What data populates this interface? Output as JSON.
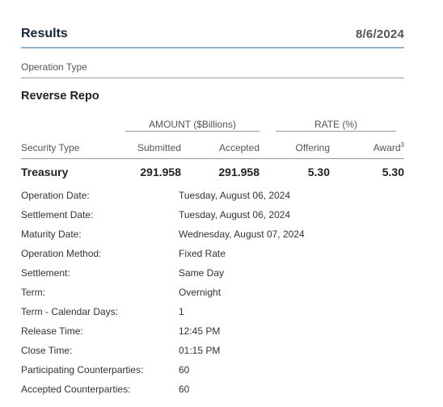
{
  "header": {
    "title": "Results",
    "date": "8/6/2024"
  },
  "operation_type_label": "Operation Type",
  "operation_type": "Reverse Repo",
  "groups": {
    "amount": "AMOUNT ($Billions)",
    "rate": "RATE (%)"
  },
  "columns": {
    "security_type": "Security Type",
    "submitted": "Submitted",
    "accepted": "Accepted",
    "offering": "Offering",
    "award": "Award",
    "award_footnote": "3"
  },
  "row": {
    "security": "Treasury",
    "submitted": "291.958",
    "accepted": "291.958",
    "offering": "5.30",
    "award": "5.30"
  },
  "details": [
    {
      "label": "Operation Date:",
      "value": "Tuesday, August 06, 2024"
    },
    {
      "label": "Settlement Date:",
      "value": "Tuesday, August 06, 2024"
    },
    {
      "label": "Maturity Date:",
      "value": "Wednesday, August 07, 2024"
    },
    {
      "label": "Operation Method:",
      "value": "Fixed Rate"
    },
    {
      "label": "Settlement:",
      "value": "Same Day"
    },
    {
      "label": "Term:",
      "value": "Overnight"
    },
    {
      "label": "Term - Calendar Days:",
      "value": "1"
    },
    {
      "label": "Release Time:",
      "value": "12:45 PM"
    },
    {
      "label": "Close Time:",
      "value": "01:15 PM"
    },
    {
      "label": "Participating Counterparties:",
      "value": "60"
    },
    {
      "label": "Accepted Counterparties:",
      "value": "60"
    }
  ]
}
